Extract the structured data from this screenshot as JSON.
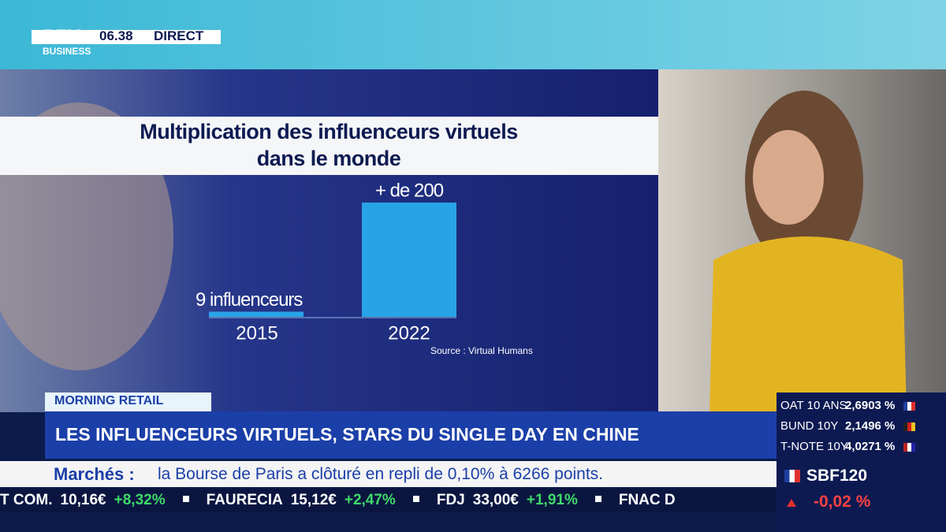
{
  "header": {
    "logo": "BFM",
    "logo_sub": "BUSINESS",
    "time": "06.38",
    "live": "DIRECT"
  },
  "chart_data": {
    "type": "bar",
    "title": "Multiplication des influenceurs virtuels dans le monde",
    "categories": [
      "2015",
      "2022"
    ],
    "values": [
      9,
      200
    ],
    "value_labels": [
      "9 influenceurs",
      "+ de 200"
    ],
    "color": "#29a3e8",
    "source": "Source : Virtual Humans"
  },
  "banner": {
    "tag": "MORNING RETAIL",
    "headline": "LES INFLUENCEURS VIRTUELS, STARS DU SINGLE DAY EN CHINE"
  },
  "ticker": {
    "label": "Marchés :",
    "text": "la Bourse de Paris a clôturé en repli de 0,10% à 6266 points."
  },
  "crawl": [
    {
      "name": "T COM.",
      "price": "10,16€",
      "change": "+8,32%"
    },
    {
      "name": "FAURECIA",
      "price": "15,12€",
      "change": "+2,47%"
    },
    {
      "name": "FDJ",
      "price": "33,00€",
      "change": "+1,91%"
    },
    {
      "name": "FNAC D",
      "price": "",
      "change": ""
    }
  ],
  "markets": {
    "rates": [
      {
        "name": "OAT 10 ANS",
        "value": "2,6903 %"
      },
      {
        "name": "BUND 10Y",
        "value": "2,1496 %"
      },
      {
        "name": "T-NOTE 10Y",
        "value": "4,0271 %"
      }
    ],
    "index": {
      "name": "SBF120",
      "change": "-0,02 %"
    }
  }
}
